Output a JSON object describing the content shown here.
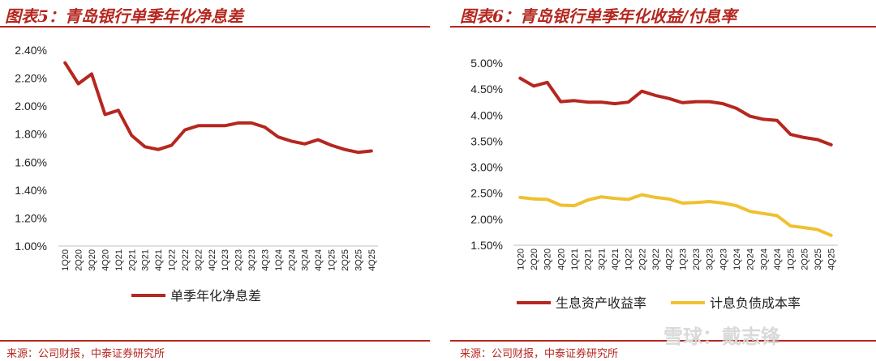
{
  "left": {
    "title": "图表5：青岛银行单季年化净息差",
    "source": "来源：公司财报，中泰证券研究所",
    "chart_data": {
      "type": "line",
      "categories": [
        "1Q20",
        "2Q20",
        "3Q20",
        "4Q20",
        "1Q21",
        "2Q21",
        "3Q21",
        "4Q21",
        "1Q22",
        "2Q22",
        "3Q22",
        "4Q22",
        "1Q23",
        "2Q23",
        "3Q23",
        "4Q23",
        "1Q24",
        "2Q24",
        "3Q24",
        "4Q24",
        "1Q25",
        "2Q25",
        "3Q25",
        "4Q25"
      ],
      "yticks": [
        "2.40%",
        "2.20%",
        "2.00%",
        "1.80%",
        "1.60%",
        "1.40%",
        "1.20%",
        "1.00%"
      ],
      "ylim": [
        1.0,
        2.4
      ],
      "series": [
        {
          "name": "单季年化净息差",
          "color": "#b5271f",
          "values": [
            2.31,
            2.16,
            2.23,
            1.94,
            1.97,
            1.79,
            1.71,
            1.69,
            1.72,
            1.83,
            1.86,
            1.86,
            1.86,
            1.88,
            1.88,
            1.85,
            1.78,
            1.75,
            1.73,
            1.76,
            1.72,
            1.69,
            1.67,
            1.68
          ]
        }
      ],
      "legend_position": "bottom"
    }
  },
  "right": {
    "title": "图表6：青岛银行单季年化收益/付息率",
    "source": "来源：公司财报，中泰证券研究所",
    "chart_data": {
      "type": "line",
      "categories": [
        "1Q20",
        "2Q20",
        "3Q20",
        "4Q20",
        "1Q21",
        "2Q21",
        "3Q21",
        "4Q21",
        "1Q22",
        "2Q22",
        "3Q22",
        "4Q22",
        "1Q23",
        "2Q23",
        "3Q23",
        "4Q23",
        "1Q24",
        "2Q24",
        "3Q24",
        "4Q24",
        "1Q25",
        "2Q25",
        "3Q25",
        "4Q25"
      ],
      "yticks": [
        "5.00%",
        "4.50%",
        "4.00%",
        "3.50%",
        "3.00%",
        "2.50%",
        "2.00%",
        "1.50%"
      ],
      "ylim": [
        1.5,
        5.0
      ],
      "series": [
        {
          "name": "生息资产收益率",
          "color": "#b5271f",
          "values": [
            4.71,
            4.56,
            4.63,
            4.26,
            4.28,
            4.25,
            4.25,
            4.22,
            4.25,
            4.46,
            4.38,
            4.32,
            4.24,
            4.26,
            4.26,
            4.22,
            4.13,
            3.98,
            3.92,
            3.9,
            3.63,
            3.57,
            3.53,
            3.43
          ]
        },
        {
          "name": "计息负债成本率",
          "color": "#f0c030",
          "values": [
            2.42,
            2.39,
            2.38,
            2.27,
            2.26,
            2.37,
            2.43,
            2.4,
            2.38,
            2.47,
            2.42,
            2.39,
            2.31,
            2.32,
            2.34,
            2.31,
            2.26,
            2.15,
            2.11,
            2.07,
            1.87,
            1.84,
            1.8,
            1.69
          ]
        }
      ],
      "legend_position": "bottom"
    }
  },
  "watermark": "雪球：戴志锋"
}
